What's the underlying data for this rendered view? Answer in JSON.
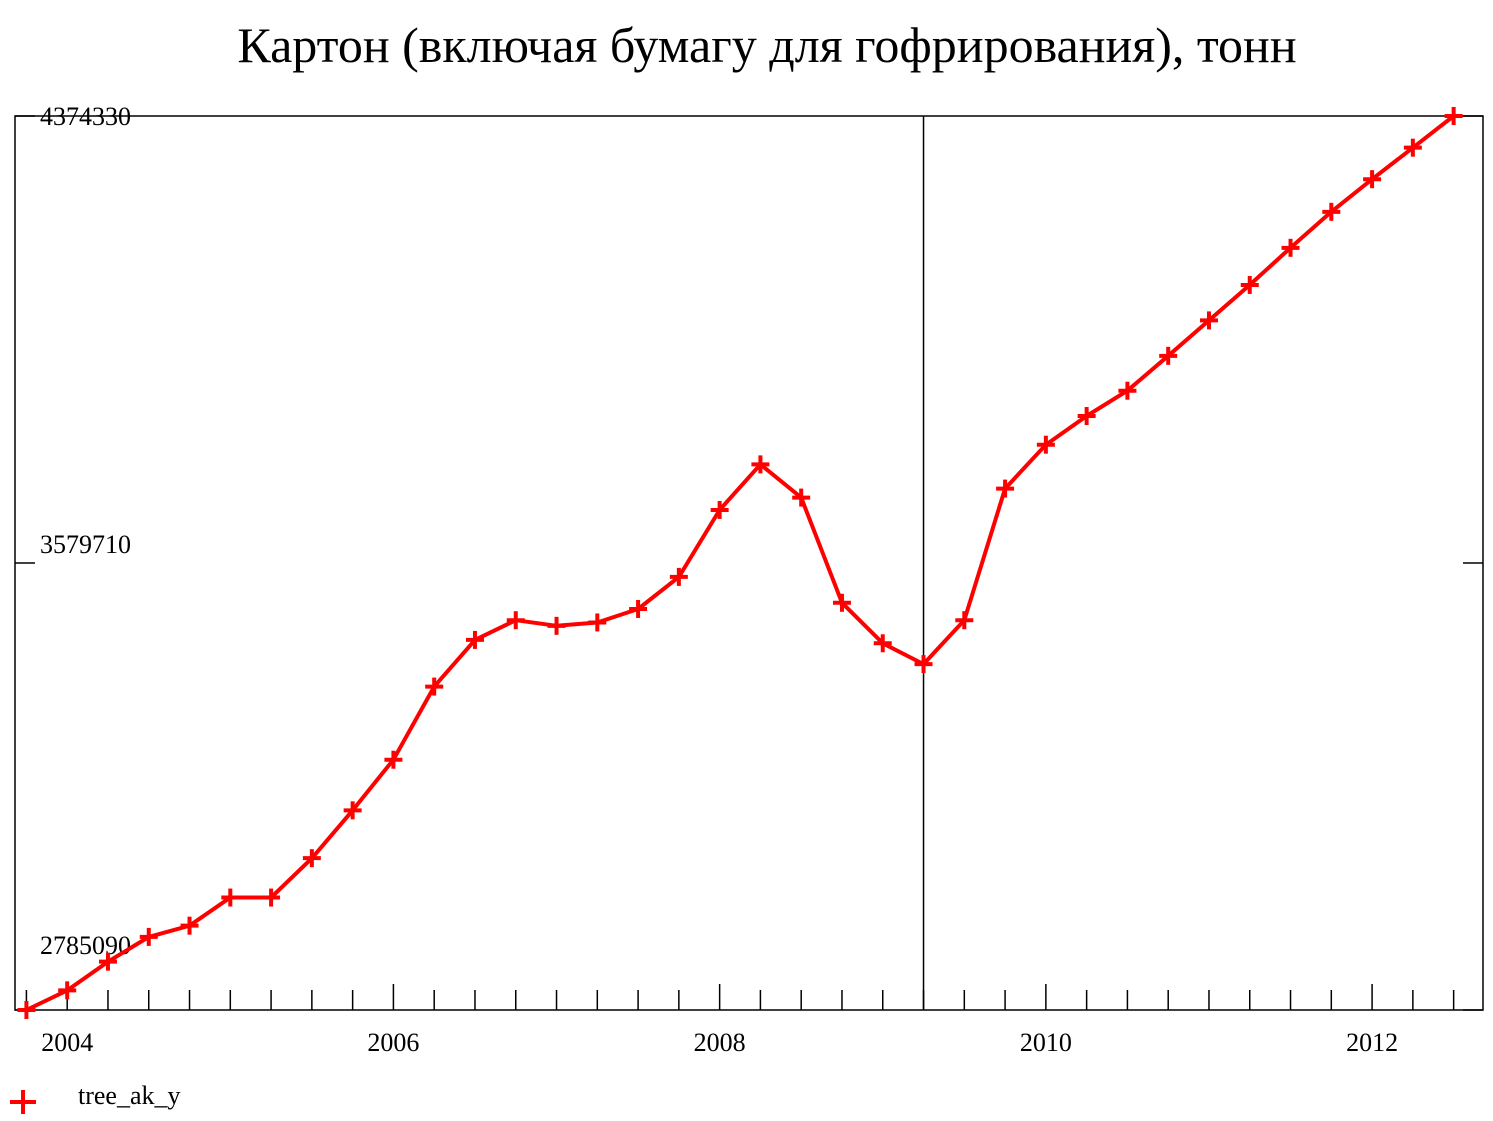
{
  "chart_data": {
    "type": "line",
    "title": "Картон (включая бумагу для гофрирования), тонн",
    "xlabel": "",
    "ylabel": "",
    "xlim": [
      2003.68,
      2012.68
    ],
    "ylim": [
      2785090,
      4374330
    ],
    "x_ticks": [
      2004,
      2006,
      2008,
      2010,
      2012
    ],
    "x_tick_labels": [
      "2004",
      "2006",
      "2008",
      "2010",
      "2012"
    ],
    "y_ticks": [
      2785090,
      3579710,
      4374330
    ],
    "y_tick_labels": [
      "2785090",
      "3579710",
      "4374330"
    ],
    "vertical_marker": 2009.25,
    "grid": false,
    "legend_position": "bottom-left",
    "color": "#ff0000",
    "series": [
      {
        "name": "tree_ak_y",
        "marker": "plus",
        "x": [
          2003.75,
          2004.0,
          2004.25,
          2004.5,
          2004.75,
          2005.0,
          2005.25,
          2005.5,
          2005.75,
          2006.0,
          2006.25,
          2006.5,
          2006.75,
          2007.0,
          2007.25,
          2007.5,
          2007.75,
          2008.0,
          2008.25,
          2008.5,
          2008.75,
          2009.0,
          2009.25,
          2009.5,
          2009.75,
          2010.0,
          2010.25,
          2010.5,
          2010.75,
          2011.0,
          2011.25,
          2011.5,
          2011.75,
          2012.0,
          2012.25,
          2012.5
        ],
        "values": [
          2785090,
          2820000,
          2871000,
          2915000,
          2935000,
          2985000,
          2985000,
          3055000,
          3140000,
          3230000,
          3360000,
          3443000,
          3478000,
          3468000,
          3474000,
          3498000,
          3555000,
          3674000,
          3755000,
          3696000,
          3509000,
          3437000,
          3400000,
          3478000,
          3712000,
          3790000,
          3841000,
          3886000,
          3948000,
          4011000,
          4074000,
          4140000,
          4204000,
          4262000,
          4318000,
          4374330
        ]
      }
    ]
  }
}
